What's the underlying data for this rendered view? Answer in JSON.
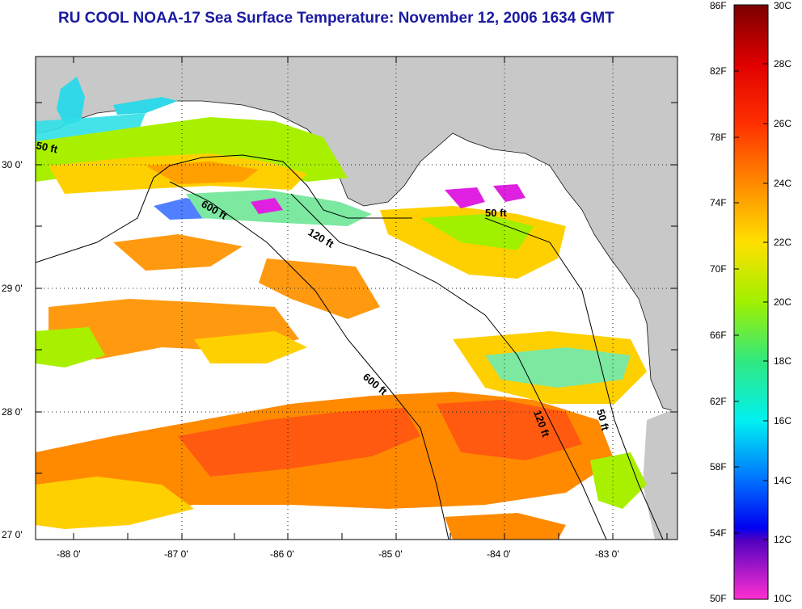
{
  "title": "RU COOL  NOAA-17  Sea Surface Temperature:  November 12, 2006 1634 GMT",
  "map": {
    "x_ticks": [
      "-88 0'",
      "-87 0'",
      "-86 0'",
      "-85 0'",
      "-84 0'",
      "-83 0'"
    ],
    "y_ticks": [
      "30 0'",
      "29 0'",
      "28 0'",
      "27 0'"
    ],
    "contours": [
      "50 ft",
      "600 ft",
      "120 ft",
      "50 ft",
      "600 ft",
      "120 ft",
      "50 ft"
    ],
    "colors": {
      "land": "#c8c8c8",
      "cloud": "#ffffff"
    }
  },
  "colorbar": {
    "fahrenheit": [
      "86F",
      "82F",
      "78F",
      "74F",
      "70F",
      "66F",
      "62F",
      "58F",
      "54F",
      "50F"
    ],
    "celsius": [
      "30C",
      "28C",
      "26C",
      "24C",
      "22C",
      "20C",
      "18C",
      "16C",
      "14C",
      "12C",
      "10C"
    ]
  }
}
